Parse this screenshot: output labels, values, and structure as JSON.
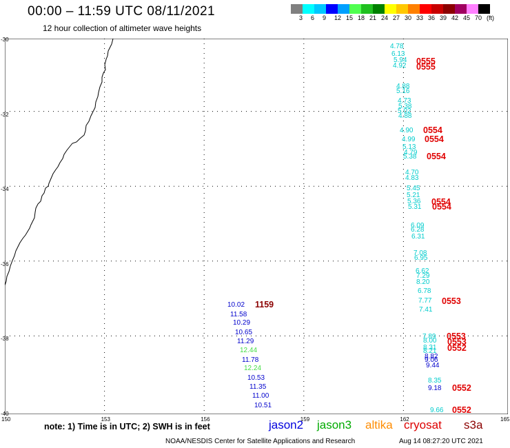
{
  "title": "00:00 – 11:59 UTC 08/11/2021",
  "subtitle": "12 hour collection of altimeter wave heights",
  "colorbar": {
    "colors": [
      "#808080",
      "#00ffff",
      "#00c8ff",
      "#0000ff",
      "#00a0ff",
      "#50ff50",
      "#20c020",
      "#008000",
      "#ffff00",
      "#ffc800",
      "#ff8000",
      "#ff0000",
      "#c80000",
      "#8b0000",
      "#a00060",
      "#ff80ff",
      "#000000"
    ],
    "labels": [
      "3",
      "6",
      "9",
      "12",
      "15",
      "18",
      "21",
      "24",
      "27",
      "30",
      "33",
      "36",
      "39",
      "42",
      "45",
      "70",
      "(ft)"
    ]
  },
  "axes": {
    "lat_labels": [
      "-30",
      "-32",
      "-34",
      "-36",
      "-38",
      "-40"
    ],
    "lon_labels": [
      "150",
      "153",
      "156",
      "159",
      "162",
      "165"
    ],
    "lat_range": [
      -40,
      -30
    ],
    "lon_range": [
      150,
      165
    ]
  },
  "passes": [
    {
      "satellite": "cryosat",
      "color": "#00cccc",
      "time": "0555",
      "time_color": "#e00000",
      "values": [
        "4.78",
        "6.13",
        "5.94",
        "4.92",
        "4.88",
        "5.16",
        "4.73",
        "5.38",
        "5.02",
        "4.88",
        "4.90",
        "4.99",
        "5.13",
        "4.79",
        "5.38",
        "4.70",
        "4.83",
        "5.45",
        "5.21",
        "5.36",
        "5.31",
        "6.09",
        "6.28",
        "6.31",
        "7.08",
        "6.95",
        "6.62",
        "7.29",
        "8.20",
        "6.78",
        "7.77",
        "7.41",
        "7.89",
        "8.00",
        "8.31",
        "8.21"
      ]
    },
    {
      "satellite": "jason3",
      "color": "#00cccc",
      "time": "0552",
      "time_color": "#e00000",
      "values": [
        "8.82",
        "9.06",
        "9.44",
        "8.35",
        "9.18",
        "9.66"
      ]
    },
    {
      "satellite": "jason2",
      "color": "#0000cc",
      "time": "1159",
      "time_color": "#8b0000",
      "values": [
        "10.02",
        "11.58",
        "10.29",
        "10.65",
        "11.29",
        "12.44",
        "11.78",
        "12.24",
        "10.53",
        "11.35",
        "11.00",
        "10.51"
      ]
    }
  ],
  "time_labels": [
    "0555",
    "0555",
    "0554",
    "0554",
    "0554",
    "0554",
    "0554",
    "0553",
    "0553",
    "0553",
    "0552",
    "0552",
    "0552",
    "1159"
  ],
  "legend_note": "note:  1) Time is in UTC;  2) SWH is in feet",
  "legend": [
    {
      "name": "jason2",
      "color": "#0000dd"
    },
    {
      "name": "jason3",
      "color": "#00aa00"
    },
    {
      "name": "altika",
      "color": "#ff8c00"
    },
    {
      "name": "cryosat",
      "color": "#dd0000"
    },
    {
      "name": "s3a",
      "color": "#8b0000"
    }
  ],
  "footer_left": "NOAA/NESDIS Center for Satellite Applications and Research",
  "footer_right": "Aug 14 08:27:20 UTC 2021"
}
